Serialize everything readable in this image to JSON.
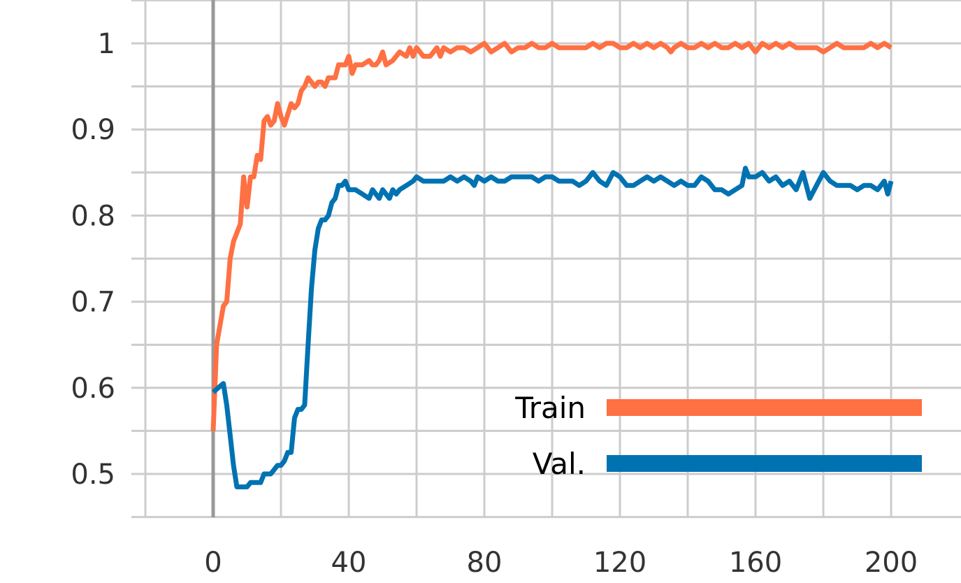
{
  "chart_data": {
    "type": "line",
    "title": "",
    "xlabel": "",
    "ylabel": "",
    "xlim": [
      -20,
      215
    ],
    "ylim": [
      0.45,
      1.05
    ],
    "x_ticks": [
      0,
      40,
      80,
      120,
      160,
      200
    ],
    "x_tick_labels": [
      "0",
      "40",
      "80",
      "120",
      "160",
      "200"
    ],
    "x_minor_ticks": [
      -20,
      20,
      60,
      100,
      140,
      180
    ],
    "y_ticks": [
      0.5,
      0.6,
      0.7,
      0.8,
      0.9,
      1.0
    ],
    "y_tick_labels": [
      "0.5",
      "0.6",
      "0.7",
      "0.8",
      "0.9",
      "1"
    ],
    "y_minor_ticks": [
      0.45,
      0.55,
      0.65,
      0.75,
      0.85,
      0.95,
      1.05
    ],
    "grid": true,
    "legend_placement": "bottom-right",
    "colors": {
      "grid": "#cccccc",
      "axis_zero": "#999999",
      "text": "#333333"
    },
    "series": [
      {
        "name": "Train",
        "color": "#ff7043",
        "points": [
          [
            0,
            0.55
          ],
          [
            1,
            0.65
          ],
          [
            3,
            0.695
          ],
          [
            4,
            0.7
          ],
          [
            5,
            0.75
          ],
          [
            6,
            0.77
          ],
          [
            8,
            0.79
          ],
          [
            9,
            0.845
          ],
          [
            10,
            0.81
          ],
          [
            11,
            0.845
          ],
          [
            12,
            0.845
          ],
          [
            13,
            0.87
          ],
          [
            14,
            0.865
          ],
          [
            15,
            0.91
          ],
          [
            16,
            0.915
          ],
          [
            17,
            0.905
          ],
          [
            18,
            0.91
          ],
          [
            19,
            0.93
          ],
          [
            20,
            0.915
          ],
          [
            21,
            0.905
          ],
          [
            23,
            0.93
          ],
          [
            24,
            0.925
          ],
          [
            25,
            0.93
          ],
          [
            26,
            0.945
          ],
          [
            27,
            0.95
          ],
          [
            28,
            0.96
          ],
          [
            29,
            0.955
          ],
          [
            30,
            0.95
          ],
          [
            31,
            0.955
          ],
          [
            32,
            0.955
          ],
          [
            33,
            0.95
          ],
          [
            34,
            0.96
          ],
          [
            36,
            0.96
          ],
          [
            37,
            0.975
          ],
          [
            38,
            0.975
          ],
          [
            39,
            0.975
          ],
          [
            40,
            0.985
          ],
          [
            41,
            0.965
          ],
          [
            42,
            0.975
          ],
          [
            44,
            0.975
          ],
          [
            46,
            0.98
          ],
          [
            47,
            0.975
          ],
          [
            48,
            0.975
          ],
          [
            49,
            0.98
          ],
          [
            50,
            0.99
          ],
          [
            51,
            0.975
          ],
          [
            53,
            0.98
          ],
          [
            55,
            0.99
          ],
          [
            57,
            0.985
          ],
          [
            58,
            0.995
          ],
          [
            59,
            0.985
          ],
          [
            60,
            0.995
          ],
          [
            62,
            0.985
          ],
          [
            64,
            0.985
          ],
          [
            65,
            0.99
          ],
          [
            66,
            0.995
          ],
          [
            67,
            0.985
          ],
          [
            68,
            0.995
          ],
          [
            70,
            0.99
          ],
          [
            72,
            0.995
          ],
          [
            74,
            0.995
          ],
          [
            76,
            0.99
          ],
          [
            78,
            0.995
          ],
          [
            80,
            1.0
          ],
          [
            82,
            0.99
          ],
          [
            84,
            0.995
          ],
          [
            86,
            1.0
          ],
          [
            88,
            0.99
          ],
          [
            90,
            0.995
          ],
          [
            92,
            0.995
          ],
          [
            94,
            1.0
          ],
          [
            96,
            0.995
          ],
          [
            98,
            0.995
          ],
          [
            100,
            1.0
          ],
          [
            102,
            0.995
          ],
          [
            104,
            0.995
          ],
          [
            106,
            0.995
          ],
          [
            108,
            0.995
          ],
          [
            110,
            0.995
          ],
          [
            112,
            1.0
          ],
          [
            114,
            0.995
          ],
          [
            116,
            1.0
          ],
          [
            118,
            1.0
          ],
          [
            120,
            0.995
          ],
          [
            122,
            0.995
          ],
          [
            124,
            1.0
          ],
          [
            126,
            0.995
          ],
          [
            128,
            1.0
          ],
          [
            130,
            0.995
          ],
          [
            132,
            1.0
          ],
          [
            134,
            0.995
          ],
          [
            135,
            0.99
          ],
          [
            136,
            0.995
          ],
          [
            138,
            1.0
          ],
          [
            140,
            0.995
          ],
          [
            142,
            0.995
          ],
          [
            144,
            1.0
          ],
          [
            146,
            0.995
          ],
          [
            148,
            1.0
          ],
          [
            150,
            0.995
          ],
          [
            152,
            0.995
          ],
          [
            154,
            1.0
          ],
          [
            156,
            0.995
          ],
          [
            158,
            1.0
          ],
          [
            160,
            0.99
          ],
          [
            162,
            1.0
          ],
          [
            164,
            0.995
          ],
          [
            166,
            1.0
          ],
          [
            168,
            0.995
          ],
          [
            170,
            1.0
          ],
          [
            172,
            0.995
          ],
          [
            174,
            0.995
          ],
          [
            176,
            0.995
          ],
          [
            178,
            0.995
          ],
          [
            180,
            0.99
          ],
          [
            182,
            0.995
          ],
          [
            184,
            1.0
          ],
          [
            186,
            0.995
          ],
          [
            188,
            0.995
          ],
          [
            190,
            0.995
          ],
          [
            192,
            0.995
          ],
          [
            194,
            1.0
          ],
          [
            196,
            0.995
          ],
          [
            198,
            1.0
          ],
          [
            200,
            0.995
          ]
        ]
      },
      {
        "name": "Val.",
        "color": "#0072b2",
        "points": [
          [
            0,
            0.595
          ],
          [
            3,
            0.605
          ],
          [
            4,
            0.58
          ],
          [
            5,
            0.545
          ],
          [
            6,
            0.51
          ],
          [
            7,
            0.485
          ],
          [
            10,
            0.485
          ],
          [
            11,
            0.49
          ],
          [
            12,
            0.49
          ],
          [
            14,
            0.49
          ],
          [
            15,
            0.5
          ],
          [
            17,
            0.5
          ],
          [
            18,
            0.505
          ],
          [
            19,
            0.51
          ],
          [
            20,
            0.51
          ],
          [
            21,
            0.515
          ],
          [
            22,
            0.525
          ],
          [
            23,
            0.525
          ],
          [
            24,
            0.565
          ],
          [
            25,
            0.575
          ],
          [
            26,
            0.575
          ],
          [
            27,
            0.58
          ],
          [
            28,
            0.65
          ],
          [
            29,
            0.715
          ],
          [
            30,
            0.76
          ],
          [
            31,
            0.785
          ],
          [
            32,
            0.795
          ],
          [
            33,
            0.795
          ],
          [
            34,
            0.8
          ],
          [
            35,
            0.815
          ],
          [
            36,
            0.82
          ],
          [
            37,
            0.835
          ],
          [
            38,
            0.835
          ],
          [
            39,
            0.84
          ],
          [
            40,
            0.83
          ],
          [
            42,
            0.83
          ],
          [
            44,
            0.825
          ],
          [
            46,
            0.82
          ],
          [
            47,
            0.83
          ],
          [
            48,
            0.825
          ],
          [
            49,
            0.82
          ],
          [
            50,
            0.83
          ],
          [
            52,
            0.82
          ],
          [
            53,
            0.83
          ],
          [
            54,
            0.825
          ],
          [
            55,
            0.83
          ],
          [
            57,
            0.835
          ],
          [
            59,
            0.84
          ],
          [
            60,
            0.845
          ],
          [
            62,
            0.84
          ],
          [
            64,
            0.84
          ],
          [
            66,
            0.84
          ],
          [
            68,
            0.84
          ],
          [
            70,
            0.845
          ],
          [
            72,
            0.84
          ],
          [
            74,
            0.845
          ],
          [
            76,
            0.84
          ],
          [
            77,
            0.835
          ],
          [
            78,
            0.845
          ],
          [
            80,
            0.84
          ],
          [
            82,
            0.845
          ],
          [
            84,
            0.84
          ],
          [
            86,
            0.84
          ],
          [
            88,
            0.845
          ],
          [
            90,
            0.845
          ],
          [
            92,
            0.845
          ],
          [
            94,
            0.845
          ],
          [
            96,
            0.84
          ],
          [
            98,
            0.845
          ],
          [
            100,
            0.845
          ],
          [
            102,
            0.84
          ],
          [
            104,
            0.84
          ],
          [
            106,
            0.84
          ],
          [
            108,
            0.835
          ],
          [
            110,
            0.84
          ],
          [
            112,
            0.85
          ],
          [
            114,
            0.84
          ],
          [
            116,
            0.835
          ],
          [
            118,
            0.85
          ],
          [
            120,
            0.845
          ],
          [
            122,
            0.835
          ],
          [
            124,
            0.835
          ],
          [
            126,
            0.84
          ],
          [
            128,
            0.845
          ],
          [
            130,
            0.84
          ],
          [
            132,
            0.845
          ],
          [
            134,
            0.84
          ],
          [
            136,
            0.835
          ],
          [
            138,
            0.84
          ],
          [
            140,
            0.835
          ],
          [
            142,
            0.835
          ],
          [
            144,
            0.845
          ],
          [
            146,
            0.84
          ],
          [
            148,
            0.83
          ],
          [
            150,
            0.83
          ],
          [
            152,
            0.825
          ],
          [
            154,
            0.83
          ],
          [
            156,
            0.835
          ],
          [
            157,
            0.855
          ],
          [
            158,
            0.845
          ],
          [
            160,
            0.845
          ],
          [
            162,
            0.85
          ],
          [
            164,
            0.84
          ],
          [
            166,
            0.845
          ],
          [
            168,
            0.835
          ],
          [
            170,
            0.84
          ],
          [
            172,
            0.83
          ],
          [
            174,
            0.85
          ],
          [
            176,
            0.82
          ],
          [
            178,
            0.835
          ],
          [
            180,
            0.85
          ],
          [
            182,
            0.84
          ],
          [
            184,
            0.835
          ],
          [
            186,
            0.835
          ],
          [
            188,
            0.835
          ],
          [
            190,
            0.83
          ],
          [
            192,
            0.835
          ],
          [
            194,
            0.835
          ],
          [
            196,
            0.83
          ],
          [
            198,
            0.84
          ],
          [
            199,
            0.825
          ],
          [
            200,
            0.84
          ]
        ]
      }
    ]
  }
}
